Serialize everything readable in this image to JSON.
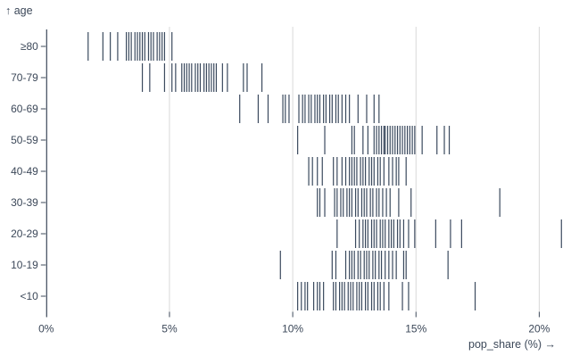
{
  "chart_data": {
    "type": "tick",
    "title": "",
    "x_axis": {
      "label": "pop_share (%) →",
      "tick_values": [
        0,
        5,
        10,
        15,
        20
      ],
      "tick_labels": [
        "0%",
        "5%",
        "10%",
        "15%",
        "20%"
      ],
      "domain": [
        0,
        21.3
      ],
      "grid": true
    },
    "y_axis": {
      "label": "↑ age",
      "categories": [
        "≥80",
        "70-79",
        "60-69",
        "50-59",
        "40-49",
        "30-39",
        "20-29",
        "10-19",
        "<10"
      ]
    },
    "series": [
      {
        "category": "≥80",
        "values": [
          1.7,
          2.3,
          2.6,
          2.9,
          3.25,
          3.35,
          3.45,
          3.6,
          3.7,
          3.8,
          3.9,
          4.0,
          4.15,
          4.25,
          4.35,
          4.5,
          4.6,
          4.7,
          4.8,
          5.1
        ]
      },
      {
        "category": "70-79",
        "values": [
          3.9,
          4.2,
          4.8,
          5.1,
          5.25,
          5.5,
          5.6,
          5.7,
          5.8,
          5.9,
          6.05,
          6.15,
          6.25,
          6.4,
          6.5,
          6.6,
          6.7,
          6.8,
          6.9,
          7.15,
          7.35,
          8.0,
          8.15,
          8.75
        ]
      },
      {
        "category": "60-69",
        "values": [
          7.85,
          8.6,
          9.0,
          9.6,
          9.7,
          9.85,
          10.25,
          10.4,
          10.5,
          10.65,
          10.75,
          10.9,
          11.0,
          11.1,
          11.25,
          11.35,
          11.5,
          11.6,
          11.75,
          11.85,
          12.0,
          12.15,
          12.3,
          12.65,
          13.0,
          13.3,
          13.5
        ]
      },
      {
        "category": "50-59",
        "values": [
          10.2,
          11.3,
          12.4,
          12.5,
          12.85,
          13.05,
          13.3,
          13.4,
          13.5,
          13.6,
          13.7,
          13.75,
          13.85,
          13.95,
          14.05,
          14.15,
          14.25,
          14.35,
          14.45,
          14.55,
          14.65,
          14.75,
          14.85,
          14.95,
          15.25,
          15.85,
          16.15,
          16.35
        ]
      },
      {
        "category": "40-49",
        "values": [
          10.65,
          10.8,
          11.0,
          11.2,
          11.65,
          11.8,
          12.0,
          12.15,
          12.3,
          12.4,
          12.5,
          12.6,
          12.75,
          12.85,
          12.95,
          13.1,
          13.2,
          13.3,
          13.45,
          13.55,
          13.7,
          13.9,
          14.05,
          14.2,
          14.3,
          14.6
        ]
      },
      {
        "category": "30-39",
        "values": [
          11.0,
          11.1,
          11.3,
          11.7,
          11.8,
          11.95,
          12.05,
          12.2,
          12.3,
          12.4,
          12.55,
          12.65,
          12.8,
          12.9,
          13.0,
          13.15,
          13.25,
          13.4,
          13.5,
          13.65,
          13.8,
          13.95,
          14.3,
          14.8,
          18.4
        ]
      },
      {
        "category": "20-29",
        "values": [
          11.8,
          12.55,
          12.7,
          12.85,
          12.95,
          13.05,
          13.2,
          13.3,
          13.4,
          13.55,
          13.65,
          13.75,
          13.9,
          14.0,
          14.1,
          14.25,
          14.35,
          14.5,
          14.7,
          14.95,
          15.8,
          16.4,
          16.85,
          20.9
        ]
      },
      {
        "category": "10-19",
        "values": [
          9.5,
          11.6,
          11.75,
          12.15,
          12.3,
          12.4,
          12.5,
          12.65,
          12.75,
          12.9,
          13.0,
          13.1,
          13.25,
          13.35,
          13.5,
          13.6,
          13.75,
          13.9,
          14.05,
          14.2,
          14.5,
          14.6,
          16.3
        ]
      },
      {
        "category": "<10",
        "values": [
          10.2,
          10.35,
          10.5,
          10.6,
          10.85,
          11.0,
          11.1,
          11.25,
          11.65,
          11.75,
          11.9,
          12.0,
          12.1,
          12.25,
          12.35,
          12.45,
          12.6,
          12.7,
          12.8,
          12.95,
          13.05,
          13.2,
          13.3,
          13.45,
          13.55,
          13.7,
          13.9,
          14.45,
          14.7,
          17.4
        ]
      }
    ],
    "colors": {
      "tick": "#3b4a5e",
      "axis": "#3c4859",
      "text": "#3c4859",
      "grid": "#d9d9d9",
      "background": "#ffffff"
    },
    "legend": "none"
  }
}
